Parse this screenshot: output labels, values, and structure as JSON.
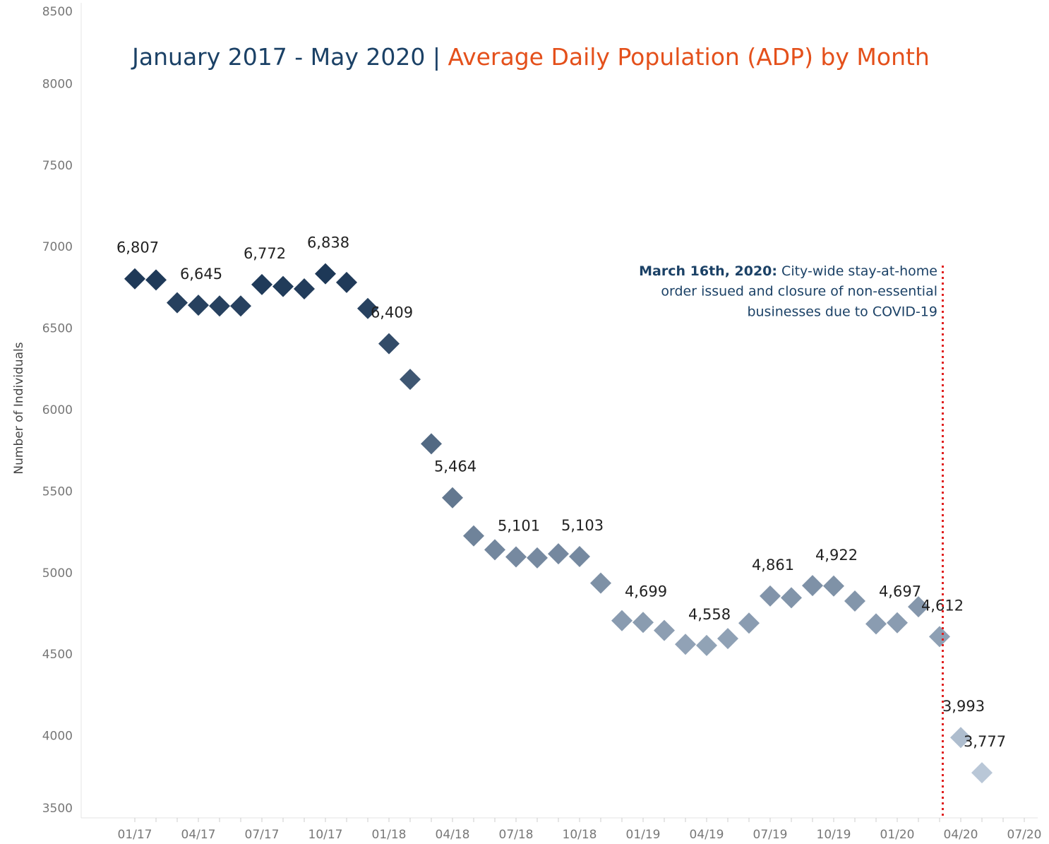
{
  "chart_data": {
    "type": "scatter",
    "title": {
      "part1": "January 2017 - May 2020",
      "separator": "|",
      "part2": "Average Daily Population (ADP) by Month"
    },
    "y_label": "Number of Individuals",
    "annotation": {
      "bold": "March 16th, 2020:",
      "lines": [
        " City-wide stay-at-home",
        "order issued and closure of non-essential",
        "businesses due to COVID-19"
      ]
    },
    "categories": [
      "01/17",
      null,
      null,
      "04/17",
      null,
      null,
      "07/17",
      null,
      null,
      "10/17",
      null,
      null,
      "01/18",
      null,
      null,
      "04/18",
      null,
      null,
      "07/18",
      null,
      null,
      "10/18",
      null,
      null,
      "01/19",
      null,
      null,
      "04/19",
      null,
      null,
      "07/19",
      null,
      null,
      "10/19",
      null,
      null,
      "01/20",
      null,
      null,
      "04/20",
      null,
      null,
      "07/20"
    ],
    "values": [
      6807,
      6800,
      6660,
      6645,
      6640,
      6640,
      6772,
      6760,
      6745,
      6838,
      6785,
      6625,
      6409,
      6190,
      5795,
      5464,
      5230,
      5145,
      5101,
      5095,
      5120,
      5103,
      4940,
      4710,
      4699,
      4650,
      4565,
      4558,
      4600,
      4695,
      4861,
      4850,
      4925,
      4922,
      4830,
      4690,
      4697,
      4795,
      4612,
      3993,
      3777,
      null,
      null
    ],
    "value_labels": [
      "6,807",
      null,
      null,
      "6,645",
      null,
      null,
      "6,772",
      null,
      null,
      "6,838",
      null,
      null,
      "6,409",
      null,
      null,
      "5,464",
      null,
      null,
      "5,101",
      null,
      null,
      "5,103",
      null,
      null,
      "4,699",
      null,
      null,
      "4,558",
      null,
      null,
      "4,861",
      null,
      null,
      "4,922",
      null,
      null,
      "4,697",
      null,
      "4,612",
      "3,993",
      "3,777",
      null,
      null
    ],
    "color_scale": {
      "low": "#b9c7d7",
      "high": "#1d3857"
    },
    "title_colors": [
      "#1b4166",
      "#e4501b"
    ],
    "annotation_color": "#e02020",
    "ylim": [
      3500,
      8500
    ],
    "yticks": [
      3500,
      4000,
      4500,
      5000,
      5500,
      6000,
      6500,
      7000,
      7500,
      8000,
      8500
    ],
    "grid": false
  }
}
